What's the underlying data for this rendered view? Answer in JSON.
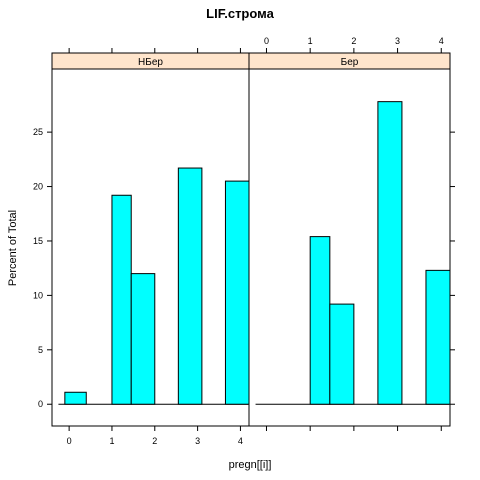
{
  "chart_data": {
    "type": "bar",
    "title": "LIF.строма",
    "xlabel": "pregn[[i]]",
    "ylabel": "Percent of Total",
    "x_ticks": [
      0,
      1,
      2,
      3,
      4
    ],
    "y_ticks": [
      0,
      5,
      10,
      15,
      20,
      25
    ],
    "xlim": [
      -0.4,
      4.2
    ],
    "ylim": [
      -2.0,
      30.8
    ],
    "bin_edges": [
      0,
      0.4,
      1,
      1.45,
      2,
      2.6,
      3,
      3.55,
      4
    ],
    "grid": false,
    "panels": [
      {
        "label": "НБер",
        "bars": [
          {
            "x0": -0.1,
            "x1": 0.4,
            "value": 1.1
          },
          {
            "x0": 1.0,
            "x1": 1.45,
            "value": 19.2
          },
          {
            "x0": 1.45,
            "x1": 2.0,
            "value": 12.0
          },
          {
            "x0": 2.55,
            "x1": 3.1,
            "value": 21.7
          },
          {
            "x0": 3.65,
            "x1": 4.2,
            "value": 20.5
          }
        ]
      },
      {
        "label": "Бер",
        "bars": [
          {
            "x0": 1.0,
            "x1": 1.45,
            "value": 15.4
          },
          {
            "x0": 1.45,
            "x1": 2.0,
            "value": 9.2
          },
          {
            "x0": 2.55,
            "x1": 3.1,
            "value": 27.8
          },
          {
            "x0": 3.65,
            "x1": 4.2,
            "value": 12.3
          }
        ]
      }
    ],
    "colors": {
      "bar_fill": "#00ffff",
      "bar_stroke": "#000000",
      "strip_fill": "#ffe5cc",
      "frame": "#000000"
    }
  }
}
